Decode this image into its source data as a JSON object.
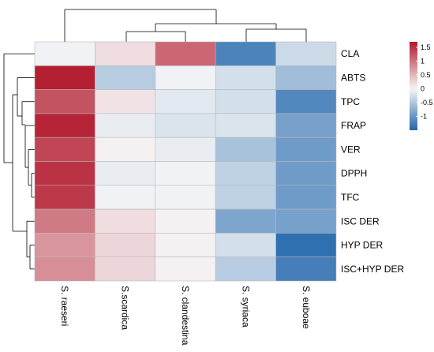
{
  "chart_data": {
    "type": "heatmap",
    "title": "",
    "xlabel": "",
    "ylabel": "",
    "columns": [
      "S. raeseri",
      "S.scardica",
      "S. clandestina",
      "S. syriaca",
      "S. euboae"
    ],
    "rows": [
      "CLA",
      "ABTS",
      "TPC",
      "FRAP",
      "VER",
      "DPPH",
      "TFC",
      "ISC DER",
      "HYP DER",
      "ISC+HYP DER"
    ],
    "values": [
      [
        -0.05,
        0.2,
        1.1,
        -1.2,
        -0.3
      ],
      [
        1.65,
        -0.45,
        -0.05,
        -0.25,
        -0.6
      ],
      [
        1.25,
        0.15,
        -0.15,
        -0.25,
        -1.15
      ],
      [
        1.6,
        -0.1,
        -0.2,
        -0.2,
        -0.9
      ],
      [
        1.35,
        0.05,
        -0.1,
        -0.55,
        -0.95
      ],
      [
        1.5,
        -0.1,
        -0.05,
        -0.4,
        -0.95
      ],
      [
        1.45,
        -0.05,
        -0.05,
        -0.4,
        -0.95
      ],
      [
        0.95,
        0.2,
        0.05,
        -0.85,
        -0.9
      ],
      [
        0.75,
        0.25,
        0.05,
        -0.25,
        -1.4
      ],
      [
        0.8,
        0.25,
        0.05,
        -0.45,
        -1.25
      ]
    ],
    "color_scale": {
      "min": -1.5,
      "max": 1.7,
      "low_color": "#2166ac",
      "mid_color": "#f7f7f7",
      "high_color": "#b2182b",
      "ticks": [
        "1.5",
        "1",
        "0.5",
        "0",
        "-0.5",
        "-1"
      ]
    },
    "column_dendrogram": true,
    "row_dendrogram": true,
    "legend_position": "right"
  }
}
